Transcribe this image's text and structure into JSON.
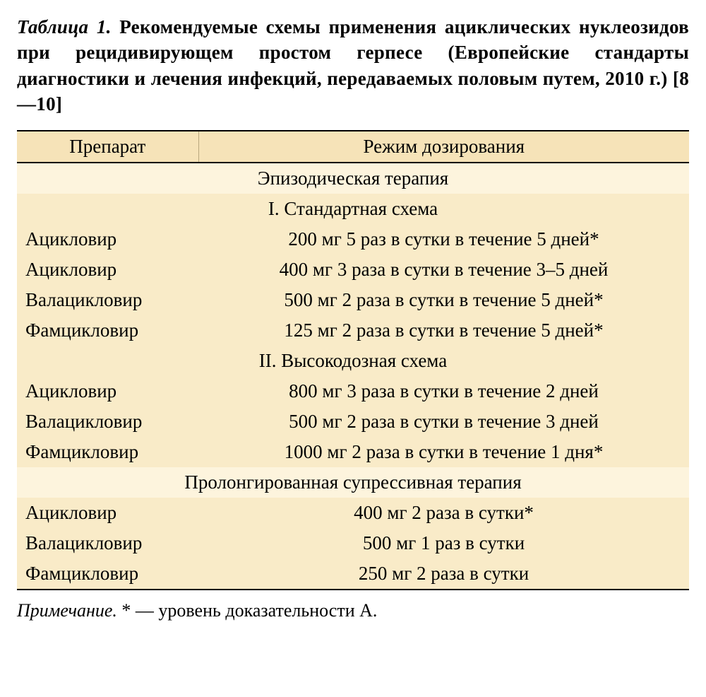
{
  "caption": {
    "table_label": "Таблица 1.",
    "text": "Рекомендуемые схемы применения ациклических нуклеозидов при рецидивирующем простом герпесе (Европейские стандарты диагностики и лечения инфекций, передаваемых половым путем, 2010 г.) [8—10]"
  },
  "table": {
    "columns": [
      "Препарат",
      "Режим дозирования"
    ],
    "section1": {
      "title": "Эпизодическая терапия",
      "sub1": {
        "title": "I. Стандартная схема",
        "rows": [
          {
            "drug": "Ацикловир",
            "dose": "200 мг 5 раз в сутки в течение 5 дней*"
          },
          {
            "drug": "Ацикловир",
            "dose": "400 мг 3 раза в сутки в течение 3–5 дней"
          },
          {
            "drug": "Валацикловир",
            "dose": "500 мг 2 раза в сутки в течение 5 дней*"
          },
          {
            "drug": "Фамцикловир",
            "dose": "125 мг 2 раза в сутки в течение 5 дней*"
          }
        ]
      },
      "sub2": {
        "title": "II. Высокодозная схема",
        "rows": [
          {
            "drug": "Ацикловир",
            "dose": "800 мг 3 раза в сутки в течение 2 дней"
          },
          {
            "drug": "Валацикловир",
            "dose": "500 мг 2 раза в сутки в течение 3 дней"
          },
          {
            "drug": "Фамцикловир",
            "dose": "1000 мг 2 раза в сутки в течение 1 дня*"
          }
        ]
      }
    },
    "section2": {
      "title": "Пролонгированная супрессивная терапия",
      "rows": [
        {
          "drug": "Ацикловир",
          "dose": "400 мг 2 раза в сутки*"
        },
        {
          "drug": "Валацикловир",
          "dose": "500 мг 1 раз в сутки"
        },
        {
          "drug": "Фамцикловир",
          "dose": "250 мг 2 раза в сутки"
        }
      ]
    }
  },
  "footnote": {
    "label": "Примечание.",
    "text": "* — уровень доказательности А."
  },
  "style": {
    "header_bg": "#f6e3b8",
    "section_bg": "#fdf4dd",
    "data_bg": "#f9ebc8",
    "border_color": "#000000",
    "font_family": "serif",
    "caption_fontsize": 27,
    "body_fontsize": 27,
    "col_widths_pct": [
      27,
      73
    ]
  }
}
